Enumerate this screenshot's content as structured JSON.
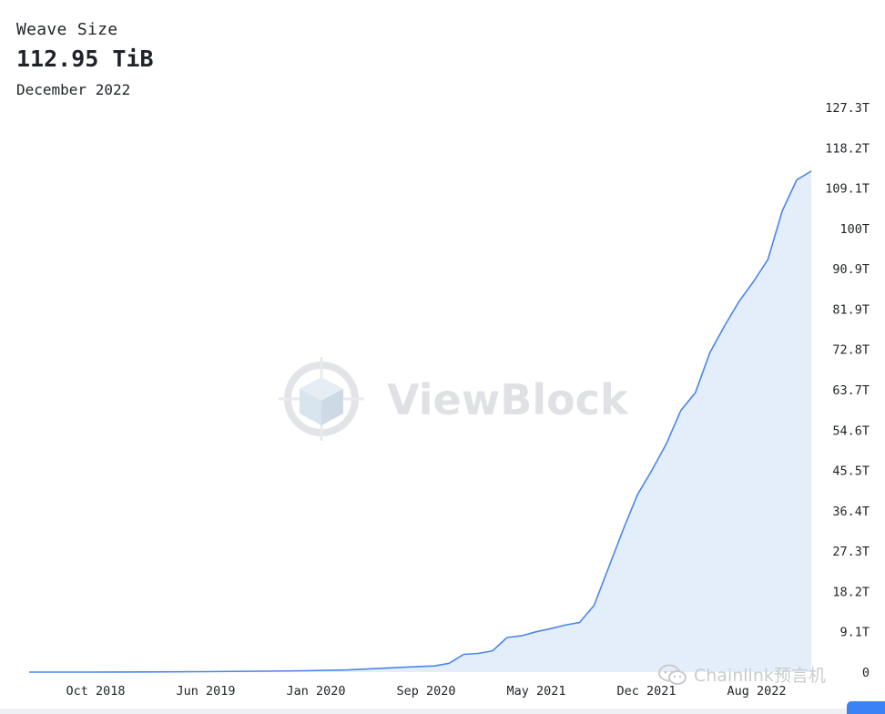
{
  "header": {
    "metric_label": "Weave Size",
    "metric_value": "112.95 TiB",
    "metric_date": "December 2022"
  },
  "watermark": {
    "text": "ViewBlock",
    "icon": "viewblock-cube-logo"
  },
  "credit": {
    "text": "Chainlink预言机",
    "icon": "wechat-icon"
  },
  "colors": {
    "line": "#4a86e8",
    "area": "#e4eefb",
    "watermark": "#dfe1e4"
  },
  "chart_data": {
    "type": "area",
    "title": "Weave Size",
    "xlabel": "",
    "ylabel": "",
    "y_unit": "T",
    "x_tick_labels": [
      "Oct 2018",
      "Jun 2019",
      "Jan 2020",
      "Sep 2020",
      "May 2021",
      "Dec 2021",
      "Aug 2022"
    ],
    "y_tick_labels": [
      "0",
      "9.1T",
      "18.2T",
      "27.3T",
      "36.4T",
      "45.5T",
      "54.6T",
      "63.7T",
      "72.8T",
      "81.9T",
      "90.9T",
      "100T",
      "109.1T",
      "118.2T",
      "127.3T"
    ],
    "ylim": [
      0,
      127.3
    ],
    "x_range": [
      "2018-06",
      "2022-12"
    ],
    "grid": false,
    "legend": "none",
    "series": [
      {
        "x": [
          "2018-06",
          "2018-10",
          "2019-02",
          "2019-06",
          "2019-10",
          "2020-01",
          "2020-04",
          "2020-06",
          "2020-08",
          "2020-10",
          "2020-11",
          "2020-12",
          "2021-01",
          "2021-02",
          "2021-03",
          "2021-04",
          "2021-05",
          "2021-06",
          "2021-07",
          "2021-08",
          "2021-09",
          "2021-10",
          "2021-11",
          "2021-12",
          "2022-01",
          "2022-02",
          "2022-03",
          "2022-04",
          "2022-05",
          "2022-06",
          "2022-07",
          "2022-08",
          "2022-09",
          "2022-10",
          "2022-11",
          "2022-12"
        ],
        "values": [
          0,
          0,
          0.05,
          0.1,
          0.2,
          0.3,
          0.5,
          0.8,
          1.1,
          1.4,
          2.0,
          4.0,
          4.2,
          4.8,
          7.8,
          8.2,
          9.1,
          9.8,
          10.6,
          11.2,
          15.0,
          23.5,
          32.0,
          40.0,
          45.5,
          51.5,
          59.0,
          63.0,
          72.0,
          78.0,
          83.5,
          88.0,
          93.0,
          104.0,
          111.0,
          112.95
        ]
      }
    ]
  }
}
